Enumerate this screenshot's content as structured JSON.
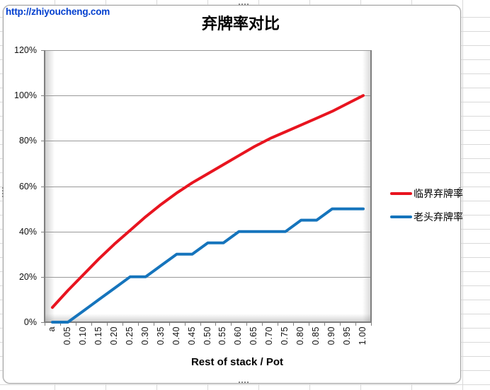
{
  "watermark": "http://zhiyoucheng.com",
  "colors": {
    "critical_line": "#e8141f",
    "oldman_line": "#1574bc",
    "gridline": "#999999",
    "axis": "#7f7f7f",
    "excel_gridline": "#d9d9d9",
    "chart_border": "#a3a3a3",
    "watermark_blue": "#0340cf",
    "label_text": "#111111"
  },
  "chart_data": {
    "type": "line",
    "title": "弃牌率对比",
    "xlabel": "Rest of stack / Pot",
    "ylabel": "",
    "categories": [
      "a",
      "0.05",
      "0.10",
      "0.15",
      "0.20",
      "0.25",
      "0.30",
      "0.35",
      "0.40",
      "0.45",
      "0.50",
      "0.55",
      "0.60",
      "0.65",
      "0.70",
      "0.75",
      "0.80",
      "0.85",
      "0.90",
      "0.95",
      "1.00"
    ],
    "series": [
      {
        "name": "临界弃牌率",
        "color": "#e8141f",
        "values_percent": [
          6.5,
          14,
          21,
          28,
          34.5,
          40.5,
          46.5,
          52,
          57,
          61.5,
          65.5,
          69.5,
          73.5,
          77.5,
          81,
          84,
          87,
          90,
          93,
          96.5,
          100
        ]
      },
      {
        "name": "老头弃牌率",
        "color": "#1574bc",
        "values_percent": [
          0,
          0,
          5,
          10,
          15,
          20,
          20,
          25,
          30,
          30,
          35,
          35,
          40,
          40,
          40,
          40,
          45,
          45,
          50,
          50,
          50
        ]
      }
    ],
    "y_axis": {
      "min": 0,
      "max": 120,
      "step": 20,
      "tick_labels": [
        "0%",
        "20%",
        "40%",
        "60%",
        "80%",
        "100%",
        "120%"
      ]
    },
    "grid": true,
    "legend_position": "right"
  }
}
